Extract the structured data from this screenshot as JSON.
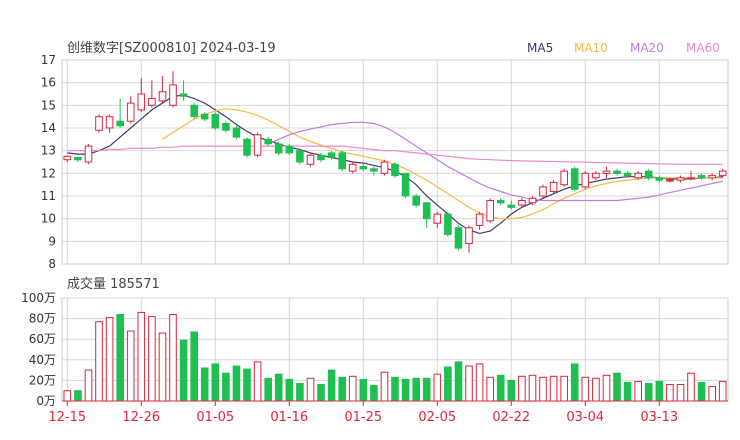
{
  "chart_data": {
    "type": "candlestick",
    "title": "创维数字[SZ000810] 2024-03-19",
    "price_axis": {
      "ylim": [
        8,
        17
      ],
      "ticks": [
        "17",
        "16",
        "15",
        "14",
        "13",
        "12",
        "11",
        "10",
        "9",
        "8"
      ]
    },
    "legend": [
      {
        "label": "MA5",
        "color": "#3b3b6a"
      },
      {
        "label": "MA10",
        "color": "#f5b944"
      },
      {
        "label": "MA20",
        "color": "#bf7be0"
      },
      {
        "label": "MA60",
        "color": "#f08ac4"
      }
    ],
    "colors": {
      "up": "#e0243c",
      "down": "#1fbf52",
      "grid": "#d8d8d8",
      "axis_label": "#e0243c"
    },
    "candles": [
      [
        12.6,
        12.75,
        12.5,
        12.8
      ],
      [
        12.7,
        12.6,
        12.5,
        12.7
      ],
      [
        12.5,
        13.2,
        12.4,
        13.3
      ],
      [
        13.9,
        14.5,
        13.8,
        14.6
      ],
      [
        14.0,
        14.5,
        13.8,
        14.6
      ],
      [
        14.3,
        14.1,
        14.0,
        15.3
      ],
      [
        14.3,
        15.1,
        14.2,
        15.4
      ],
      [
        14.8,
        15.5,
        14.7,
        16.2
      ],
      [
        15.0,
        15.3,
        14.9,
        16.1
      ],
      [
        15.2,
        15.6,
        15.1,
        16.3
      ],
      [
        15.0,
        15.9,
        14.9,
        16.5
      ],
      [
        15.5,
        15.4,
        15.2,
        16.1
      ],
      [
        15.0,
        14.5,
        14.4,
        15.1
      ],
      [
        14.6,
        14.4,
        14.3,
        14.7
      ],
      [
        14.6,
        14.0,
        13.9,
        14.7
      ],
      [
        14.2,
        13.9,
        13.8,
        14.3
      ],
      [
        14.0,
        13.6,
        13.5,
        14.1
      ],
      [
        13.5,
        12.8,
        12.7,
        13.6
      ],
      [
        12.8,
        13.7,
        12.7,
        13.8
      ],
      [
        13.5,
        13.3,
        13.2,
        13.6
      ],
      [
        13.3,
        12.9,
        12.8,
        13.4
      ],
      [
        13.2,
        12.9,
        12.8,
        13.3
      ],
      [
        13.0,
        12.5,
        12.4,
        13.1
      ],
      [
        12.4,
        12.8,
        12.3,
        12.9
      ],
      [
        12.8,
        12.6,
        12.5,
        12.9
      ],
      [
        12.9,
        12.7,
        12.6,
        13.0
      ],
      [
        12.9,
        12.2,
        12.1,
        13.0
      ],
      [
        12.1,
        12.4,
        12.0,
        12.5
      ],
      [
        12.3,
        12.2,
        12.1,
        12.5
      ],
      [
        12.2,
        12.1,
        11.9,
        12.3
      ],
      [
        12.0,
        12.5,
        11.9,
        12.6
      ],
      [
        12.4,
        11.9,
        11.8,
        12.5
      ],
      [
        12.0,
        11.0,
        10.9,
        12.0
      ],
      [
        11.0,
        10.6,
        10.5,
        11.1
      ],
      [
        10.7,
        10.0,
        9.6,
        10.7
      ],
      [
        9.8,
        10.2,
        9.6,
        10.3
      ],
      [
        10.2,
        9.3,
        9.2,
        10.3
      ],
      [
        9.6,
        8.7,
        8.6,
        9.7
      ],
      [
        8.9,
        9.6,
        8.5,
        9.7
      ],
      [
        9.7,
        10.2,
        9.5,
        10.3
      ],
      [
        9.9,
        10.8,
        9.8,
        10.9
      ],
      [
        10.8,
        10.7,
        10.6,
        10.9
      ],
      [
        10.6,
        10.5,
        10.4,
        10.8
      ],
      [
        10.6,
        10.8,
        10.5,
        10.9
      ],
      [
        10.7,
        10.9,
        10.6,
        11.0
      ],
      [
        11.0,
        11.4,
        10.9,
        11.5
      ],
      [
        11.2,
        11.6,
        11.1,
        11.7
      ],
      [
        11.5,
        12.1,
        11.4,
        12.2
      ],
      [
        12.2,
        11.3,
        11.2,
        12.3
      ],
      [
        11.4,
        12.0,
        11.3,
        12.1
      ],
      [
        11.8,
        12.0,
        11.7,
        12.1
      ],
      [
        12.0,
        12.1,
        11.8,
        12.3
      ],
      [
        12.1,
        12.0,
        11.9,
        12.2
      ],
      [
        12.0,
        11.9,
        11.8,
        12.1
      ],
      [
        11.8,
        12.0,
        11.7,
        12.1
      ],
      [
        12.1,
        11.8,
        11.7,
        12.2
      ],
      [
        11.8,
        11.7,
        11.6,
        11.9
      ],
      [
        11.7,
        11.7,
        11.6,
        11.8
      ],
      [
        11.7,
        11.8,
        11.6,
        11.9
      ],
      [
        11.8,
        11.8,
        11.7,
        12.1
      ],
      [
        11.9,
        11.8,
        11.7,
        12.0
      ],
      [
        11.8,
        11.9,
        11.7,
        12.0
      ],
      [
        11.9,
        12.1,
        11.8,
        12.2
      ]
    ],
    "ma": {
      "MA5": [
        12.9,
        12.85,
        12.85,
        13.0,
        13.2,
        13.6,
        14.0,
        14.4,
        14.8,
        15.1,
        15.4,
        15.45,
        15.3,
        15.1,
        14.8,
        14.5,
        14.15,
        13.85,
        13.6,
        13.45,
        13.3,
        13.15,
        13.05,
        12.9,
        12.8,
        12.7,
        12.6,
        12.5,
        12.45,
        12.35,
        12.25,
        12.1,
        11.85,
        11.5,
        11.0,
        10.6,
        10.2,
        9.8,
        9.5,
        9.35,
        9.45,
        9.8,
        10.2,
        10.5,
        10.7,
        10.9,
        11.1,
        11.3,
        11.45,
        11.55,
        11.65,
        11.75,
        11.8,
        11.85,
        11.85,
        11.85,
        11.8,
        11.75,
        11.75,
        11.75,
        11.8,
        11.8,
        11.85
      ],
      "MA10": [
        null,
        null,
        null,
        null,
        null,
        null,
        null,
        null,
        null,
        13.5,
        13.8,
        14.1,
        14.4,
        14.6,
        14.75,
        14.85,
        14.8,
        14.7,
        14.55,
        14.35,
        14.1,
        13.85,
        13.6,
        13.4,
        13.25,
        13.1,
        12.95,
        12.85,
        12.75,
        12.65,
        12.55,
        12.4,
        12.2,
        11.95,
        11.7,
        11.4,
        11.1,
        10.8,
        10.5,
        10.25,
        10.1,
        10.0,
        10.0,
        10.05,
        10.2,
        10.4,
        10.65,
        10.9,
        11.1,
        11.3,
        11.45,
        11.55,
        11.65,
        11.7,
        11.75,
        11.8,
        11.8,
        11.8,
        11.8,
        11.8,
        11.8,
        11.8,
        11.8
      ],
      "MA20": [
        null,
        null,
        null,
        null,
        null,
        null,
        null,
        null,
        null,
        null,
        null,
        null,
        null,
        null,
        null,
        null,
        null,
        null,
        null,
        13.3,
        13.5,
        13.7,
        13.85,
        13.95,
        14.05,
        14.15,
        14.2,
        14.25,
        14.25,
        14.2,
        14.05,
        13.8,
        13.5,
        13.2,
        12.9,
        12.6,
        12.3,
        12.05,
        11.8,
        11.55,
        11.35,
        11.2,
        11.05,
        10.95,
        10.85,
        10.8,
        10.8,
        10.8,
        10.8,
        10.8,
        10.8,
        10.8,
        10.8,
        10.85,
        10.9,
        10.95,
        11.05,
        11.15,
        11.25,
        11.35,
        11.45,
        11.55,
        11.65
      ],
      "MA60": [
        13.0,
        13.0,
        13.0,
        13.0,
        13.05,
        13.05,
        13.1,
        13.1,
        13.1,
        13.15,
        13.15,
        13.2,
        13.2,
        13.2,
        13.2,
        13.2,
        13.2,
        13.2,
        13.2,
        13.2,
        13.2,
        13.2,
        13.2,
        13.2,
        13.2,
        13.2,
        13.2,
        13.15,
        13.1,
        13.05,
        13.0,
        13.0,
        12.95,
        12.9,
        12.85,
        12.8,
        12.75,
        12.7,
        12.65,
        12.62,
        12.6,
        12.58,
        12.56,
        12.55,
        12.54,
        12.53,
        12.52,
        12.51,
        12.5,
        12.49,
        12.48,
        12.47,
        12.46,
        12.45,
        12.44,
        12.43,
        12.42,
        12.41,
        12.4,
        12.4,
        12.4,
        12.4,
        12.4
      ]
    },
    "volume": {
      "title": "成交量 185571",
      "ylim": [
        0,
        100
      ],
      "ticks": [
        "100万",
        "80万",
        "60万",
        "40万",
        "20万",
        "0万"
      ],
      "values": [
        10,
        10,
        30,
        77,
        81,
        84,
        68,
        86,
        82,
        66,
        84,
        59,
        67,
        32,
        36,
        27,
        34,
        31,
        38,
        22,
        26,
        21,
        17,
        22,
        16,
        30,
        23,
        24,
        21,
        15,
        28,
        23,
        21,
        22,
        22,
        26,
        33,
        38,
        34,
        36,
        23,
        25,
        20,
        24,
        25,
        23,
        24,
        24,
        36,
        23,
        22,
        25,
        27,
        18,
        19,
        17,
        19,
        16,
        16,
        27,
        18,
        14,
        19
      ]
    },
    "date_labels": [
      {
        "index": 0,
        "label": "12-15"
      },
      {
        "index": 7,
        "label": "12-26"
      },
      {
        "index": 14,
        "label": "01-05"
      },
      {
        "index": 21,
        "label": "01-16"
      },
      {
        "index": 28,
        "label": "01-25"
      },
      {
        "index": 35,
        "label": "02-05"
      },
      {
        "index": 42,
        "label": "02-22"
      },
      {
        "index": 49,
        "label": "03-04"
      },
      {
        "index": 56,
        "label": "03-13"
      }
    ]
  }
}
